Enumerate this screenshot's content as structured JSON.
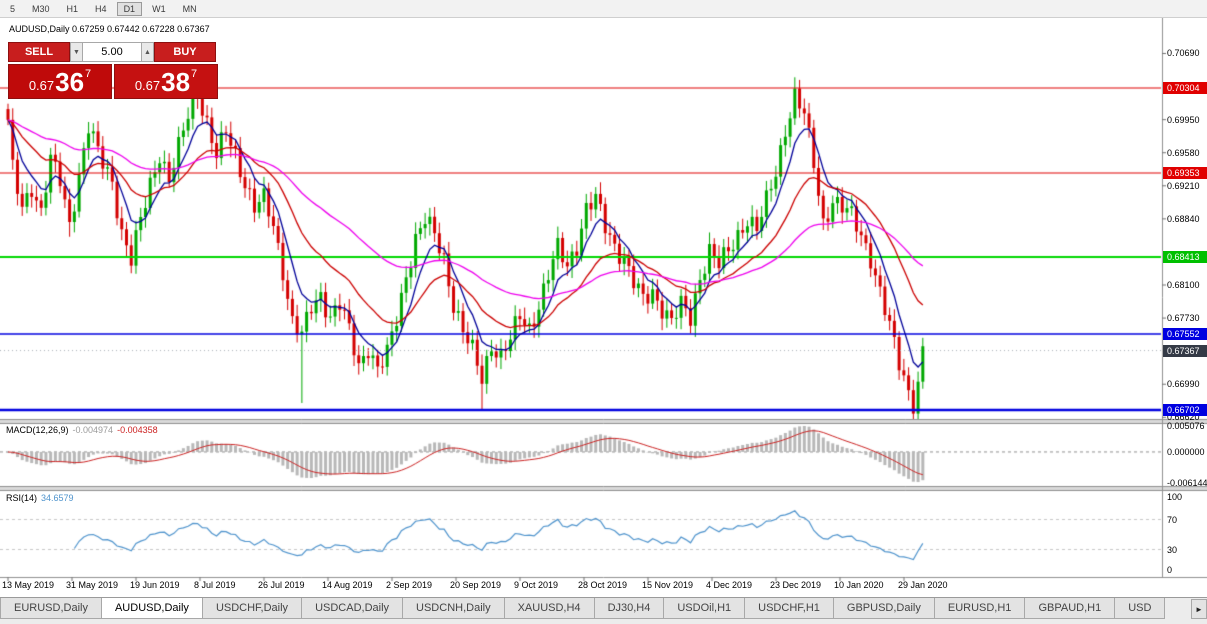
{
  "toolbar": {
    "timeframes": [
      "5",
      "M30",
      "H1",
      "H4",
      "D1",
      "W1",
      "MN"
    ],
    "active": "D1"
  },
  "chart": {
    "title": "AUDUSD,Daily 0.67259 0.67442 0.67228 0.67367",
    "symbol": "AUDUSD,Daily",
    "ohlc": {
      "open": "0.67259",
      "high": "0.67442",
      "low": "0.67228",
      "close": "0.67367"
    }
  },
  "icons": {
    "volume_down": "▼",
    "volume_up": "▲",
    "tab_scroll": "►"
  },
  "trade_panel": {
    "sell_label": "SELL",
    "buy_label": "BUY",
    "volume": "5.00",
    "sell_price": {
      "base": "0.67",
      "big": "36",
      "sup": "7"
    },
    "buy_price": {
      "base": "0.67",
      "big": "38",
      "sup": "7"
    }
  },
  "price_axis": {
    "ticks": [
      {
        "label": "0.70690",
        "price": 0.7069
      },
      {
        "label": "0.69950",
        "price": 0.6995
      },
      {
        "label": "0.69580",
        "price": 0.6958
      },
      {
        "label": "0.69210",
        "price": 0.6921
      },
      {
        "label": "0.68840",
        "price": 0.6884
      },
      {
        "label": "0.68100",
        "price": 0.681
      },
      {
        "label": "0.67730",
        "price": 0.6773
      },
      {
        "label": "0.66990",
        "price": 0.6699
      },
      {
        "label": "0.66620",
        "price": 0.6662
      }
    ],
    "levels": [
      {
        "label": "0.70304",
        "price": 0.70304,
        "color": "#e00000"
      },
      {
        "label": "0.69353",
        "price": 0.69353,
        "color": "#e00000"
      },
      {
        "label": "0.68413",
        "price": 0.68413,
        "color": "#00c000"
      },
      {
        "label": "0.67552",
        "price": 0.67552,
        "color": "#0000e0"
      },
      {
        "label": "0.66702",
        "price": 0.66702,
        "color": "#0000e0"
      }
    ],
    "current": {
      "label": "0.67367",
      "price": 0.67367,
      "bg": "#343a46"
    }
  },
  "indicators": {
    "macd": {
      "label": "MACD(12,26,9)",
      "value1": "-0.004974",
      "value2": "-0.004358",
      "axis": [
        "0.005076",
        "0.000000",
        "-0.006144"
      ]
    },
    "rsi": {
      "label": "RSI(14)",
      "value": "34.6579",
      "axis": [
        "100",
        "70",
        "30",
        "0"
      ]
    }
  },
  "date_axis": [
    "13 May 2019",
    "31 May 2019",
    "19 Jun 2019",
    "8 Jul 2019",
    "26 Jul 2019",
    "14 Aug 2019",
    "2 Sep 2019",
    "20 Sep 2019",
    "9 Oct 2019",
    "28 Oct 2019",
    "15 Nov 2019",
    "4 Dec 2019",
    "23 Dec 2019",
    "10 Jan 2020",
    "29 Jan 2020"
  ],
  "tabs": {
    "items": [
      "EURUSD,Daily",
      "AUDUSD,Daily",
      "USDCHF,Daily",
      "USDCAD,Daily",
      "USDCNH,Daily",
      "XAUUSD,H4",
      "DJ30,H4",
      "USDOil,H1",
      "USDCHF,H1",
      "GBPUSD,Daily",
      "EURUSD,H1",
      "GBPAUD,H1",
      "USD"
    ],
    "active": "AUDUSD,Daily"
  },
  "chart_data": {
    "type": "candlestick",
    "symbol": "AUDUSD",
    "timeframe": "Daily",
    "bars": 194,
    "ohlc_current": {
      "open": 0.67259,
      "high": 0.67442,
      "low": 0.67228,
      "close": 0.67367
    },
    "bid": 0.67367,
    "ask": 0.67387,
    "y_range": [
      0.6662,
      0.7069
    ],
    "price_keypoints": [
      [
        0,
        0.699
      ],
      [
        1,
        0.6938
      ],
      [
        3,
        0.6898
      ],
      [
        5,
        0.6922
      ],
      [
        7,
        0.689
      ],
      [
        9,
        0.6948
      ],
      [
        11,
        0.6928
      ],
      [
        13,
        0.688
      ],
      [
        15,
        0.6932
      ],
      [
        17,
        0.6985
      ],
      [
        19,
        0.6958
      ],
      [
        22,
        0.6928
      ],
      [
        24,
        0.6868
      ],
      [
        26,
        0.6836
      ],
      [
        28,
        0.6882
      ],
      [
        30,
        0.6925
      ],
      [
        32,
        0.6958
      ],
      [
        34,
        0.6925
      ],
      [
        36,
        0.6962
      ],
      [
        38,
        0.7002
      ],
      [
        40,
        0.7028
      ],
      [
        42,
        0.699
      ],
      [
        44,
        0.6952
      ],
      [
        46,
        0.6982
      ],
      [
        48,
        0.6958
      ],
      [
        50,
        0.6925
      ],
      [
        52,
        0.6895
      ],
      [
        54,
        0.6905
      ],
      [
        56,
        0.6878
      ],
      [
        58,
        0.6828
      ],
      [
        60,
        0.6768
      ],
      [
        62,
        0.6752
      ],
      [
        64,
        0.6785
      ],
      [
        66,
        0.68
      ],
      [
        68,
        0.6775
      ],
      [
        70,
        0.6788
      ],
      [
        72,
        0.6758
      ],
      [
        74,
        0.672
      ],
      [
        76,
        0.6742
      ],
      [
        78,
        0.6715
      ],
      [
        80,
        0.6732
      ],
      [
        82,
        0.6772
      ],
      [
        84,
        0.6822
      ],
      [
        86,
        0.6862
      ],
      [
        88,
        0.6882
      ],
      [
        90,
        0.6865
      ],
      [
        92,
        0.684
      ],
      [
        94,
        0.679
      ],
      [
        96,
        0.6758
      ],
      [
        98,
        0.6735
      ],
      [
        100,
        0.6705
      ],
      [
        102,
        0.6745
      ],
      [
        104,
        0.673
      ],
      [
        106,
        0.6748
      ],
      [
        108,
        0.6775
      ],
      [
        110,
        0.6762
      ],
      [
        112,
        0.6788
      ],
      [
        114,
        0.682
      ],
      [
        116,
        0.685
      ],
      [
        118,
        0.6832
      ],
      [
        120,
        0.6856
      ],
      [
        122,
        0.6895
      ],
      [
        124,
        0.6905
      ],
      [
        126,
        0.6875
      ],
      [
        128,
        0.6855
      ],
      [
        130,
        0.684
      ],
      [
        132,
        0.6812
      ],
      [
        134,
        0.6792
      ],
      [
        136,
        0.6802
      ],
      [
        138,
        0.6786
      ],
      [
        140,
        0.677
      ],
      [
        142,
        0.6786
      ],
      [
        144,
        0.6772
      ],
      [
        146,
        0.682
      ],
      [
        148,
        0.685
      ],
      [
        150,
        0.6832
      ],
      [
        152,
        0.6846
      ],
      [
        154,
        0.6866
      ],
      [
        156,
        0.6886
      ],
      [
        158,
        0.6872
      ],
      [
        160,
        0.6902
      ],
      [
        162,
        0.6936
      ],
      [
        164,
        0.6986
      ],
      [
        166,
        0.7022
      ],
      [
        168,
        0.7
      ],
      [
        170,
        0.6945
      ],
      [
        172,
        0.688
      ],
      [
        174,
        0.6906
      ],
      [
        176,
        0.6896
      ],
      [
        178,
        0.6886
      ],
      [
        180,
        0.6866
      ],
      [
        182,
        0.6842
      ],
      [
        184,
        0.6802
      ],
      [
        186,
        0.6762
      ],
      [
        188,
        0.6722
      ],
      [
        190,
        0.6692
      ],
      [
        191,
        0.668
      ],
      [
        192,
        0.67
      ],
      [
        193,
        0.6737
      ]
    ],
    "wick_overrides": [
      {
        "i": 13,
        "low": 0.6864
      },
      {
        "i": 26,
        "low": 0.6832
      },
      {
        "i": 62,
        "low": 0.6678
      },
      {
        "i": 100,
        "low": 0.667
      },
      {
        "i": 166,
        "high": 0.7033
      },
      {
        "i": 191,
        "low": 0.6662
      }
    ],
    "horizontal_levels": [
      {
        "price": 0.70304,
        "color": "#e00000",
        "width": 1.2
      },
      {
        "price": 0.69353,
        "color": "#e00000",
        "width": 1.2
      },
      {
        "price": 0.68413,
        "color": "#00d800",
        "width": 2
      },
      {
        "price": 0.67552,
        "color": "#0000e0",
        "width": 1.6
      },
      {
        "price": 0.66702,
        "color": "#0000e0",
        "width": 2.4
      }
    ],
    "moving_averages": [
      {
        "type": "ema",
        "period": 7,
        "color": "#000099"
      },
      {
        "type": "ema",
        "period": 21,
        "color": "#cc0000"
      },
      {
        "type": "ema",
        "period": 55,
        "color": "#ee00ee"
      }
    ],
    "macd": {
      "fast": 12,
      "slow": 26,
      "signal": 9,
      "current_main": -0.004974,
      "current_signal": -0.004358,
      "histogram_color": "#b8b8b8",
      "signal_color": "#cc2222"
    },
    "rsi": {
      "period": 14,
      "current": 34.6579,
      "color": "#4f94cd",
      "overbought": 70,
      "oversold": 30
    },
    "candle_up_color": "#00a800",
    "candle_down_color": "#d40000",
    "bid_line_color": "#aab0b8"
  }
}
